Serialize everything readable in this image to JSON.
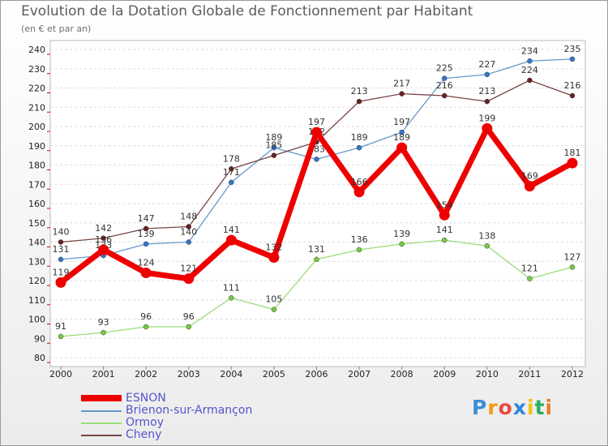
{
  "chart_data": {
    "type": "line",
    "title": "Evolution de la Dotation Globale de Fonctionnement par Habitant",
    "subtitle": "(en € et par an)",
    "x": [
      "2000",
      "2001",
      "2002",
      "2003",
      "2004",
      "2005",
      "2006",
      "2007",
      "2008",
      "2009",
      "2010",
      "2011",
      "2012"
    ],
    "ylim": [
      80,
      240
    ],
    "yticks": [
      80,
      90,
      100,
      110,
      120,
      130,
      140,
      150,
      160,
      170,
      180,
      190,
      200,
      210,
      220,
      230,
      240
    ],
    "series": [
      {
        "name": "Brienon-sur-Armançon",
        "color": "#6699cc",
        "marker": "#3377cc",
        "width": 1.3,
        "values": [
          131,
          133,
          139,
          140,
          171,
          189,
          183,
          189,
          197,
          225,
          227,
          234,
          235
        ]
      },
      {
        "name": "Ormoy",
        "color": "#99dd77",
        "marker": "#77cc44",
        "width": 1.3,
        "values": [
          91,
          93,
          96,
          96,
          111,
          105,
          131,
          136,
          139,
          141,
          138,
          121,
          127
        ]
      },
      {
        "name": "Cheny",
        "color": "#774444",
        "marker": "#662222",
        "width": 1.3,
        "values": [
          140,
          142,
          147,
          148,
          178,
          185,
          192,
          213,
          217,
          216,
          213,
          224,
          216
        ]
      },
      {
        "name": "ESNON",
        "color": "#ee0000",
        "marker": "#ee0000",
        "width": 7,
        "values": [
          119,
          136,
          124,
          121,
          141,
          132,
          197,
          166,
          189,
          154,
          199,
          169,
          181
        ]
      }
    ],
    "legend": [
      "ESNON",
      "Brienon-sur-Armançon",
      "Ormoy",
      "Cheny"
    ]
  },
  "brand": {
    "letters": [
      "P",
      "r",
      "o",
      "x",
      "i",
      "t",
      "i"
    ],
    "colors": [
      "#3a8fd8",
      "#f39c12",
      "#e74c3c",
      "#2e86de",
      "#f1c40f",
      "#27ae60",
      "#e67e22"
    ]
  }
}
